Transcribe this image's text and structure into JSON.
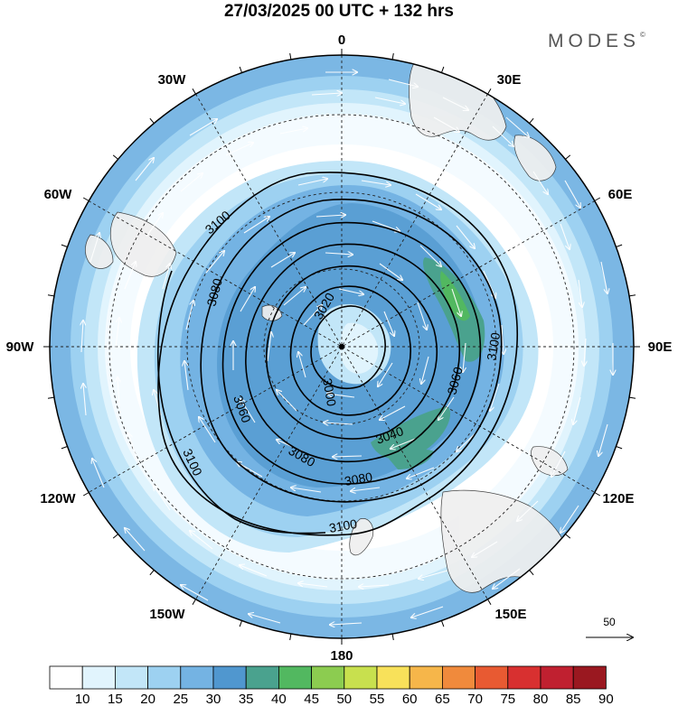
{
  "title": "27/03/2025  00 UTC  + 132 hrs",
  "brand": "MODES",
  "brand_mark": "©",
  "longitude_labels": {
    "top": "0",
    "top_right": "30E",
    "right_upper": "60E",
    "right": "90E",
    "right_lower": "120E",
    "bottom_right": "150E",
    "bottom": "180",
    "bottom_left": "150W",
    "left_lower": "120W",
    "left": "90W",
    "left_upper": "60W",
    "top_left": "30W"
  },
  "contour_labels": [
    "3000",
    "3020",
    "3040",
    "3060",
    "3060",
    "3080",
    "3080",
    "3080",
    "3100",
    "3100",
    "3100",
    "3100"
  ],
  "vector_reference": "50",
  "colorbar": {
    "levels": [
      "10",
      "15",
      "20",
      "25",
      "30",
      "35",
      "40",
      "45",
      "50",
      "55",
      "60",
      "65",
      "70",
      "75",
      "80",
      "85",
      "90"
    ],
    "colors": [
      "#ffffff",
      "#e1f4fd",
      "#c2e6f8",
      "#9dd1f1",
      "#74b3e3",
      "#5097cf",
      "#4aa28e",
      "#52b860",
      "#8ccc50",
      "#c8e04e",
      "#f8e15a",
      "#f6b64a",
      "#f08a3c",
      "#e85a32",
      "#d83030",
      "#c02030",
      "#9a1820"
    ]
  }
}
